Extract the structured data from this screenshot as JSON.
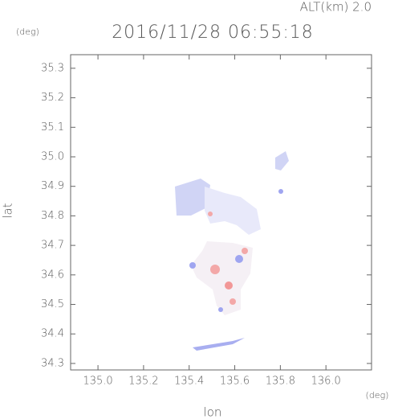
{
  "chart_data": {
    "type": "map",
    "title": "2016/11/28 06:55:18",
    "altitude_label": "ALT(km) 2.0",
    "y_unit": "(deg)",
    "x_unit": "(deg)",
    "x_label": "lon",
    "y_label": "lat",
    "xlim": [
      134.88,
      136.2
    ],
    "ylim": [
      34.278,
      35.346
    ],
    "xticks": [
      {
        "value": 135,
        "label": "135.0"
      },
      135.2,
      135.4,
      135.6,
      135.8,
      {
        "value": 136,
        "label": "136.0"
      }
    ],
    "yticks": [
      34.3,
      34.4,
      34.5,
      34.6,
      34.7,
      34.8,
      34.9,
      {
        "value": 35,
        "label": "35.0"
      },
      35.1,
      35.2,
      35.3
    ]
  }
}
